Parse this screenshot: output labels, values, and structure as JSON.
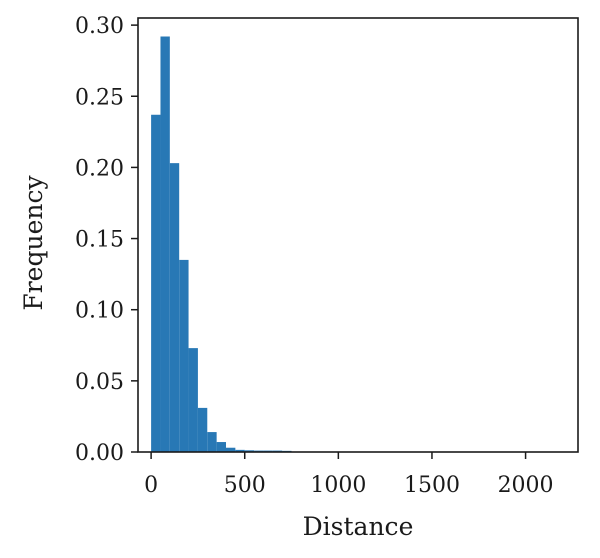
{
  "chart_data": {
    "type": "bar",
    "subtype": "histogram",
    "title": "",
    "xlabel": "Distance",
    "ylabel": "Frequency",
    "xlim": [
      -70,
      2280
    ],
    "ylim": [
      0,
      0.305
    ],
    "xticks": [
      0,
      500,
      1000,
      1500,
      2000
    ],
    "xtick_labels": [
      "0",
      "500",
      "1000",
      "1500",
      "2000"
    ],
    "yticks": [
      0.0,
      0.05,
      0.1,
      0.15,
      0.2,
      0.25,
      0.3
    ],
    "ytick_labels": [
      "0.00",
      "0.05",
      "0.10",
      "0.15",
      "0.20",
      "0.25",
      "0.30"
    ],
    "bin_width": 50,
    "bin_edges_start": 0,
    "values": [
      0.237,
      0.292,
      0.203,
      0.135,
      0.073,
      0.031,
      0.014,
      0.007,
      0.003,
      0.0015,
      0.0012,
      0.001,
      0.001,
      0.001,
      0.0008
    ],
    "color": "#2878b5",
    "grid": false,
    "legend": "none"
  }
}
